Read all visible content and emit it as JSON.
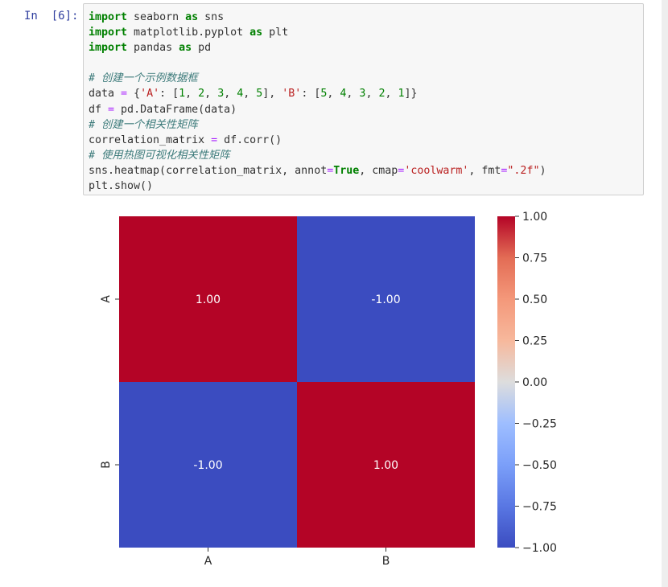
{
  "cell": {
    "prompt": "In  [6]:",
    "code_lines": [
      "import seaborn as sns",
      "import matplotlib.pyplot as plt",
      "import pandas as pd",
      "",
      "# 创建一个示例数据框",
      "data = {'A': [1, 2, 3, 4, 5], 'B': [5, 4, 3, 2, 1]}",
      "df = pd.DataFrame(data)",
      "# 创建一个相关性矩阵",
      "correlation_matrix = df.corr()",
      "# 使用热图可视化相关性矩阵",
      "sns.heatmap(correlation_matrix, annot=True, cmap='coolwarm', fmt=\".2f\")",
      "plt.show()"
    ]
  },
  "chart_data": {
    "type": "heatmap",
    "x_categories": [
      "A",
      "B"
    ],
    "y_categories": [
      "A",
      "B"
    ],
    "values": [
      [
        1.0,
        -1.0
      ],
      [
        -1.0,
        1.0
      ]
    ],
    "annotations": [
      [
        "1.00",
        "-1.00"
      ],
      [
        "-1.00",
        "1.00"
      ]
    ],
    "colormap": "coolwarm",
    "colorbar": {
      "range": [
        -1.0,
        1.0
      ],
      "ticks": [
        1.0,
        0.75,
        0.5,
        0.25,
        0.0,
        -0.25,
        -0.5,
        -0.75,
        -1.0
      ],
      "tick_labels": [
        "1.00",
        "0.75",
        "0.50",
        "0.25",
        "0.00",
        "−0.25",
        "−0.50",
        "−0.75",
        "−1.00"
      ],
      "colors": {
        "high": "#b40426",
        "mid": "#dddddd",
        "low": "#3b4cc0"
      }
    }
  }
}
